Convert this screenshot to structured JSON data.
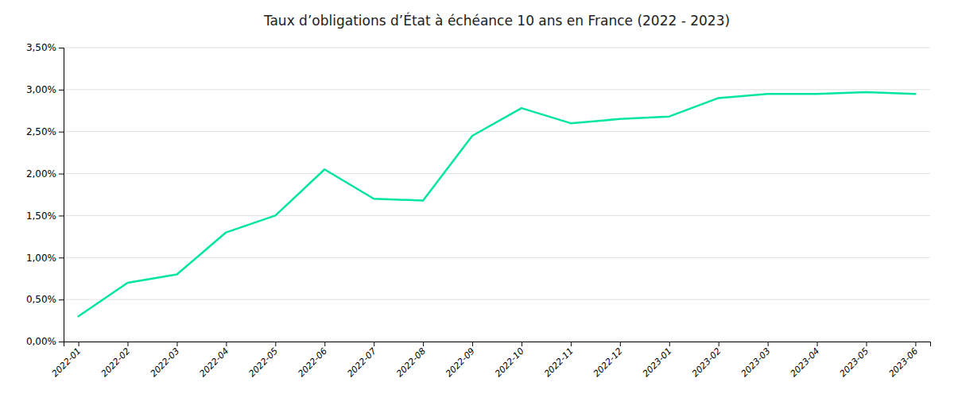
{
  "chart_data": {
    "type": "line",
    "title": "Taux d’obligations d’État à échéance 10 ans en France (2022 - 2023)",
    "categories": [
      "2022-01",
      "2022-02",
      "2022-03",
      "2022-04",
      "2022-05",
      "2022-06",
      "2022-07",
      "2022-08",
      "2022-09",
      "2022-10",
      "2022-11",
      "2022-12",
      "2023-01",
      "2023-02",
      "2023-03",
      "2023-04",
      "2023-05",
      "2023-06"
    ],
    "values": [
      0.003,
      0.007,
      0.008,
      0.013,
      0.015,
      0.0205,
      0.017,
      0.0168,
      0.0245,
      0.0278,
      0.026,
      0.0265,
      0.0268,
      0.029,
      0.0295,
      0.0295,
      0.0297,
      0.0295
    ],
    "color": "#00E5A0",
    "ylim": [
      0.0,
      0.035
    ],
    "yticks": [
      {
        "value": 0.0,
        "label": "0,00%"
      },
      {
        "value": 0.005,
        "label": "0,50%"
      },
      {
        "value": 0.01,
        "label": "1,00%"
      },
      {
        "value": 0.015,
        "label": "1,50%"
      },
      {
        "value": 0.02,
        "label": "2,00%"
      },
      {
        "value": 0.025,
        "label": "2,50%"
      },
      {
        "value": 0.03,
        "label": "3,00%"
      },
      {
        "value": 0.035,
        "label": "3,50%"
      }
    ],
    "grid": true
  }
}
